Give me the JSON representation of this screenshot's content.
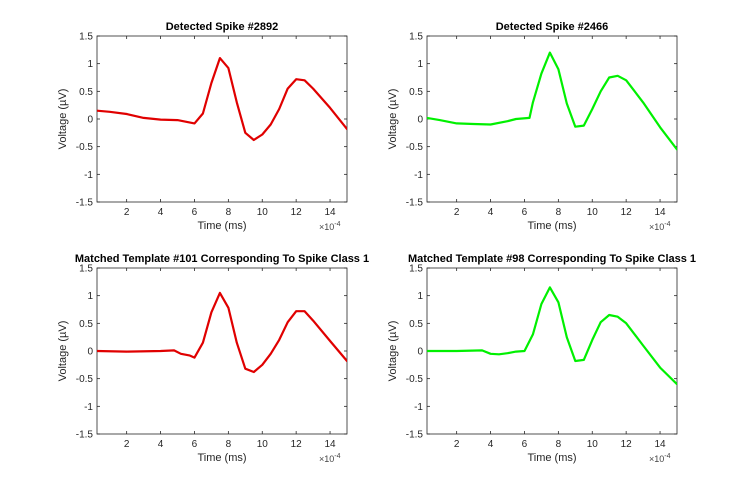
{
  "chart_data": [
    {
      "type": "line",
      "title": "Detected Spike #2892",
      "xlabel": "Time (ms)",
      "ylabel": "Voltage (µV)",
      "x_multiplier": "×10",
      "x_multiplier_exp": "-4",
      "xlim": [
        0.25,
        15
      ],
      "ylim": [
        -1.5,
        1.5
      ],
      "x_ticks": [
        2,
        4,
        6,
        8,
        10,
        12,
        14
      ],
      "x_tick_labels": [
        "2",
        "4",
        "6",
        "8",
        "10",
        "12",
        "14"
      ],
      "y_ticks": [
        -1.5,
        -1,
        -0.5,
        0,
        0.5,
        1,
        1.5
      ],
      "y_tick_labels": [
        "-1.5",
        "-1",
        "-0.5",
        "0",
        "0.5",
        "1",
        "1.5"
      ],
      "color": "#e00000",
      "series": [
        {
          "x": [
            0.25,
            1,
            2,
            3,
            4,
            5,
            6,
            6.5,
            7,
            7.5,
            8,
            8.5,
            9,
            9.5,
            10,
            10.5,
            11,
            11.5,
            12,
            12.5,
            13,
            14,
            15
          ],
          "y": [
            0.15,
            0.13,
            0.09,
            0.02,
            -0.01,
            -0.02,
            -0.08,
            0.1,
            0.65,
            1.1,
            0.92,
            0.3,
            -0.25,
            -0.38,
            -0.28,
            -0.1,
            0.18,
            0.55,
            0.72,
            0.7,
            0.55,
            0.2,
            -0.18
          ]
        }
      ]
    },
    {
      "type": "line",
      "title": "Detected Spike #2466",
      "xlabel": "Time (ms)",
      "ylabel": "Voltage (µV)",
      "x_multiplier": "×10",
      "x_multiplier_exp": "-4",
      "xlim": [
        0.25,
        15
      ],
      "ylim": [
        -1.5,
        1.5
      ],
      "x_ticks": [
        2,
        4,
        6,
        8,
        10,
        12,
        14
      ],
      "x_tick_labels": [
        "2",
        "4",
        "6",
        "8",
        "10",
        "12",
        "14"
      ],
      "y_ticks": [
        -1.5,
        -1,
        -0.5,
        0,
        0.5,
        1,
        1.5
      ],
      "y_tick_labels": [
        "-1.5",
        "-1",
        "-0.5",
        "0",
        "0.5",
        "1",
        "1.5"
      ],
      "color": "#00f000",
      "series": [
        {
          "x": [
            0.25,
            1,
            2,
            3,
            4,
            5,
            5.5,
            6.3,
            6.5,
            7,
            7.5,
            8,
            8.5,
            9,
            9.5,
            10,
            10.5,
            11,
            11.5,
            12,
            13,
            14,
            15
          ],
          "y": [
            0.02,
            -0.02,
            -0.08,
            -0.09,
            -0.1,
            -0.04,
            0.0,
            0.02,
            0.3,
            0.82,
            1.2,
            0.9,
            0.28,
            -0.14,
            -0.12,
            0.18,
            0.5,
            0.75,
            0.78,
            0.7,
            0.3,
            -0.15,
            -0.55
          ]
        }
      ]
    },
    {
      "type": "line",
      "title": "Matched Template #101 Corresponding To Spike Class 1",
      "xlabel": "Time (ms)",
      "ylabel": "Voltage (µV)",
      "x_multiplier": "×10",
      "x_multiplier_exp": "-4",
      "xlim": [
        0.25,
        15
      ],
      "ylim": [
        -1.5,
        1.5
      ],
      "x_ticks": [
        2,
        4,
        6,
        8,
        10,
        12,
        14
      ],
      "x_tick_labels": [
        "2",
        "4",
        "6",
        "8",
        "10",
        "12",
        "14"
      ],
      "y_ticks": [
        -1.5,
        -1,
        -0.5,
        0,
        0.5,
        1,
        1.5
      ],
      "y_tick_labels": [
        "-1.5",
        "-1",
        "-0.5",
        "0",
        "0.5",
        "1",
        "1.5"
      ],
      "color": "#e00000",
      "series": [
        {
          "x": [
            0.25,
            2,
            4,
            4.8,
            5.2,
            5.7,
            6,
            6.5,
            7,
            7.5,
            8,
            8.5,
            9,
            9.5,
            10,
            10.5,
            11,
            11.5,
            12,
            12.5,
            13,
            14,
            15
          ],
          "y": [
            0.0,
            -0.01,
            0.0,
            0.01,
            -0.05,
            -0.08,
            -0.12,
            0.15,
            0.7,
            1.05,
            0.78,
            0.15,
            -0.32,
            -0.38,
            -0.25,
            -0.05,
            0.2,
            0.52,
            0.72,
            0.72,
            0.55,
            0.18,
            -0.18
          ]
        }
      ]
    },
    {
      "type": "line",
      "title": "Matched Template #98 Corresponding To Spike Class 1",
      "xlabel": "Time (ms)",
      "ylabel": "Voltage (µV)",
      "x_multiplier": "×10",
      "x_multiplier_exp": "-4",
      "xlim": [
        0.25,
        15
      ],
      "ylim": [
        -1.5,
        1.5
      ],
      "x_ticks": [
        2,
        4,
        6,
        8,
        10,
        12,
        14
      ],
      "x_tick_labels": [
        "2",
        "4",
        "6",
        "8",
        "10",
        "12",
        "14"
      ],
      "y_ticks": [
        -1.5,
        -1,
        -0.5,
        0,
        0.5,
        1,
        1.5
      ],
      "y_tick_labels": [
        "-1.5",
        "-1",
        "-0.5",
        "0",
        "0.5",
        "1",
        "1.5"
      ],
      "color": "#00f000",
      "series": [
        {
          "x": [
            0.25,
            2,
            3.5,
            4,
            4.5,
            5,
            5.5,
            6,
            6.5,
            7,
            7.5,
            8,
            8.5,
            9,
            9.5,
            10,
            10.5,
            11,
            11.5,
            12,
            13,
            14,
            15
          ],
          "y": [
            0.0,
            0.0,
            0.01,
            -0.05,
            -0.06,
            -0.04,
            -0.01,
            0.0,
            0.3,
            0.85,
            1.15,
            0.88,
            0.25,
            -0.18,
            -0.16,
            0.2,
            0.52,
            0.65,
            0.62,
            0.5,
            0.1,
            -0.3,
            -0.6
          ]
        }
      ]
    }
  ]
}
